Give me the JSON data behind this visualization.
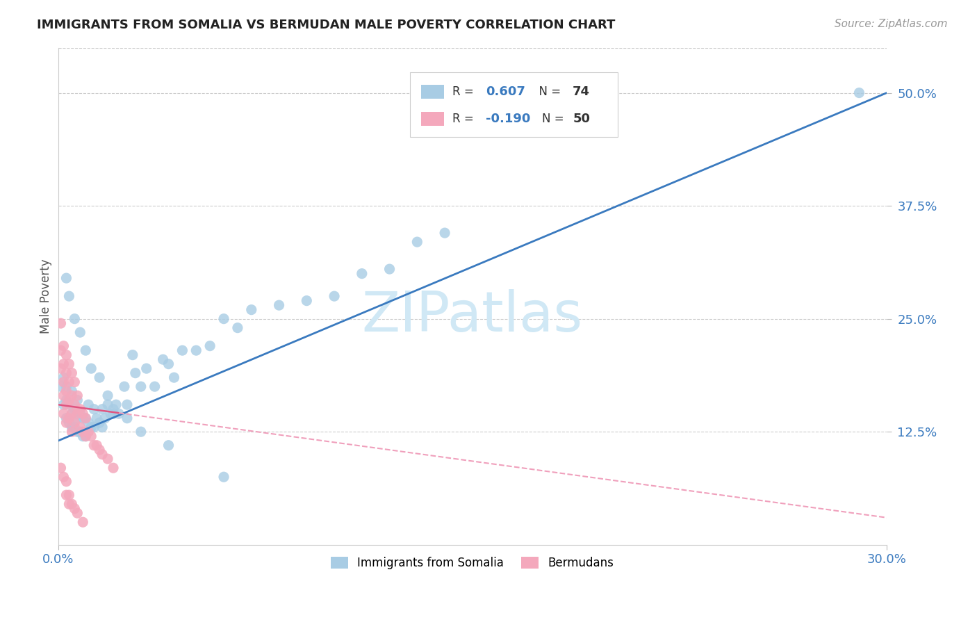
{
  "title": "IMMIGRANTS FROM SOMALIA VS BERMUDAN MALE POVERTY CORRELATION CHART",
  "source": "Source: ZipAtlas.com",
  "ylabel": "Male Poverty",
  "xlim": [
    0.0,
    0.3
  ],
  "ylim": [
    0.0,
    0.55
  ],
  "y_tick_labels": [
    "12.5%",
    "25.0%",
    "37.5%",
    "50.0%"
  ],
  "y_tick_positions": [
    0.125,
    0.25,
    0.375,
    0.5
  ],
  "legend_label1": "Immigrants from Somalia",
  "legend_label2": "Bermudans",
  "R1": 0.607,
  "R2": -0.19,
  "N1": 74,
  "N2": 50,
  "blue_color": "#a8cce4",
  "pink_color": "#f4a8bc",
  "line_blue": "#3a7abf",
  "line_pink": "#e05580",
  "line_pink_dash": "#f0a0bc",
  "watermark_color": "#d0e8f5",
  "somalia_x": [
    0.001,
    0.002,
    0.002,
    0.003,
    0.003,
    0.003,
    0.004,
    0.004,
    0.005,
    0.005,
    0.005,
    0.006,
    0.006,
    0.007,
    0.007,
    0.007,
    0.008,
    0.008,
    0.009,
    0.009,
    0.01,
    0.01,
    0.011,
    0.011,
    0.012,
    0.013,
    0.013,
    0.014,
    0.015,
    0.016,
    0.016,
    0.017,
    0.018,
    0.019,
    0.02,
    0.021,
    0.022,
    0.024,
    0.025,
    0.027,
    0.028,
    0.03,
    0.032,
    0.035,
    0.038,
    0.04,
    0.042,
    0.045,
    0.05,
    0.055,
    0.06,
    0.065,
    0.07,
    0.08,
    0.09,
    0.1,
    0.11,
    0.12,
    0.13,
    0.14,
    0.003,
    0.004,
    0.006,
    0.008,
    0.01,
    0.012,
    0.015,
    0.018,
    0.02,
    0.025,
    0.03,
    0.04,
    0.06,
    0.29
  ],
  "somalia_y": [
    0.175,
    0.155,
    0.185,
    0.14,
    0.16,
    0.175,
    0.135,
    0.155,
    0.13,
    0.145,
    0.17,
    0.13,
    0.15,
    0.125,
    0.14,
    0.16,
    0.125,
    0.145,
    0.12,
    0.14,
    0.12,
    0.14,
    0.135,
    0.155,
    0.13,
    0.13,
    0.15,
    0.14,
    0.135,
    0.13,
    0.15,
    0.14,
    0.155,
    0.145,
    0.145,
    0.155,
    0.145,
    0.175,
    0.155,
    0.21,
    0.19,
    0.175,
    0.195,
    0.175,
    0.205,
    0.2,
    0.185,
    0.215,
    0.215,
    0.22,
    0.25,
    0.24,
    0.26,
    0.265,
    0.27,
    0.275,
    0.3,
    0.305,
    0.335,
    0.345,
    0.295,
    0.275,
    0.25,
    0.235,
    0.215,
    0.195,
    0.185,
    0.165,
    0.15,
    0.14,
    0.125,
    0.11,
    0.075,
    0.5
  ],
  "bermuda_x": [
    0.001,
    0.001,
    0.001,
    0.002,
    0.002,
    0.002,
    0.002,
    0.002,
    0.003,
    0.003,
    0.003,
    0.003,
    0.003,
    0.004,
    0.004,
    0.004,
    0.004,
    0.005,
    0.005,
    0.005,
    0.005,
    0.006,
    0.006,
    0.006,
    0.007,
    0.007,
    0.008,
    0.008,
    0.009,
    0.009,
    0.01,
    0.01,
    0.011,
    0.012,
    0.013,
    0.014,
    0.015,
    0.016,
    0.018,
    0.02,
    0.001,
    0.002,
    0.003,
    0.003,
    0.004,
    0.004,
    0.005,
    0.006,
    0.007,
    0.009
  ],
  "bermuda_y": [
    0.245,
    0.215,
    0.195,
    0.22,
    0.2,
    0.18,
    0.165,
    0.145,
    0.21,
    0.19,
    0.17,
    0.155,
    0.135,
    0.2,
    0.18,
    0.16,
    0.14,
    0.19,
    0.165,
    0.145,
    0.125,
    0.18,
    0.155,
    0.135,
    0.165,
    0.145,
    0.15,
    0.13,
    0.145,
    0.125,
    0.14,
    0.12,
    0.125,
    0.12,
    0.11,
    0.11,
    0.105,
    0.1,
    0.095,
    0.085,
    0.085,
    0.075,
    0.07,
    0.055,
    0.055,
    0.045,
    0.045,
    0.04,
    0.035,
    0.025
  ],
  "blue_line_x0": 0.0,
  "blue_line_y0": 0.115,
  "blue_line_x1": 0.3,
  "blue_line_y1": 0.5,
  "pink_line_x0": 0.0,
  "pink_line_y0": 0.155,
  "pink_line_x1": 0.3,
  "pink_line_y1": 0.03
}
